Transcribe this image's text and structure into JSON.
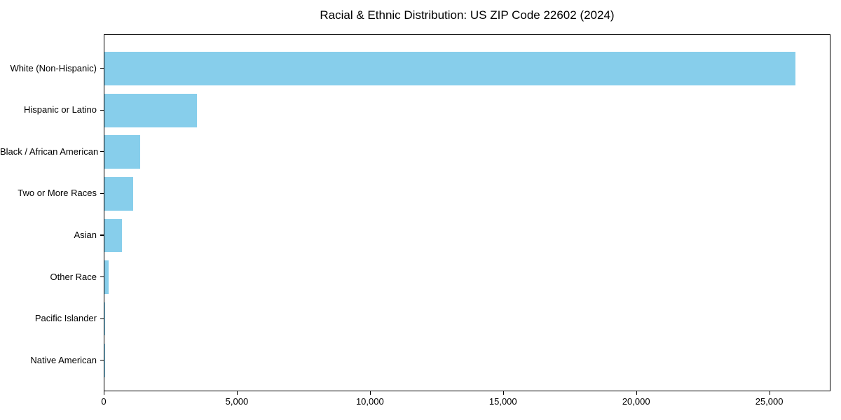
{
  "chart_data": {
    "type": "bar",
    "orientation": "horizontal",
    "title": "Racial & Ethnic Distribution: US ZIP Code 22602 (2024)",
    "xlabel": "",
    "ylabel": "",
    "categories": [
      "White (Non-Hispanic)",
      "Hispanic or Latino",
      "Black / African American",
      "Two or More Races",
      "Asian",
      "Other Race",
      "Pacific Islander",
      "Native American"
    ],
    "values": [
      26000,
      3480,
      1340,
      1090,
      660,
      150,
      25,
      10
    ],
    "xlim": [
      0,
      27300
    ],
    "x_ticks": [
      0,
      5000,
      10000,
      15000,
      20000,
      25000
    ],
    "x_tick_labels": [
      "0",
      "5,000",
      "10,000",
      "15,000",
      "20,000",
      "25,000"
    ],
    "bar_color": "#87CEEB",
    "background_color": "#ffffff",
    "grid": false,
    "legend": null
  }
}
